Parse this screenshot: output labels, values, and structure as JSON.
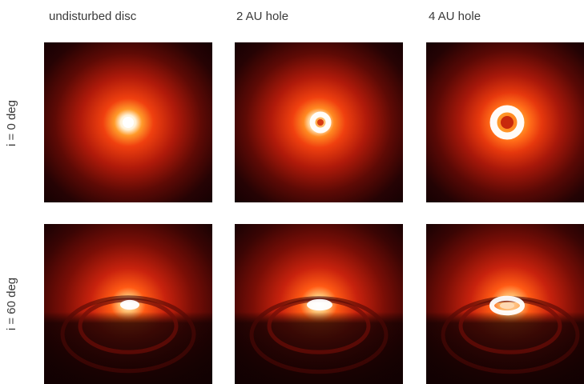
{
  "columns": [
    "undisturbed disc",
    "2 AU hole",
    "4 AU hole"
  ],
  "rows": [
    "i = 0 deg",
    "i = 60 deg"
  ],
  "panels": [
    {
      "row": 0,
      "col": 0,
      "content": "disc-face-on-no-hole"
    },
    {
      "row": 0,
      "col": 1,
      "content": "disc-face-on-small-ring"
    },
    {
      "row": 0,
      "col": 2,
      "content": "disc-face-on-large-ring"
    },
    {
      "row": 1,
      "col": 0,
      "content": "disc-inclined-no-hole"
    },
    {
      "row": 1,
      "col": 1,
      "content": "disc-inclined-small-hole"
    },
    {
      "row": 1,
      "col": 2,
      "content": "disc-inclined-large-hole"
    }
  ],
  "colors": {
    "background": "#120102",
    "outer_glow": "#6a0a05",
    "mid_glow": "#c8220d",
    "inner_glow": "#ff6a1a",
    "core": "#ffffff"
  }
}
